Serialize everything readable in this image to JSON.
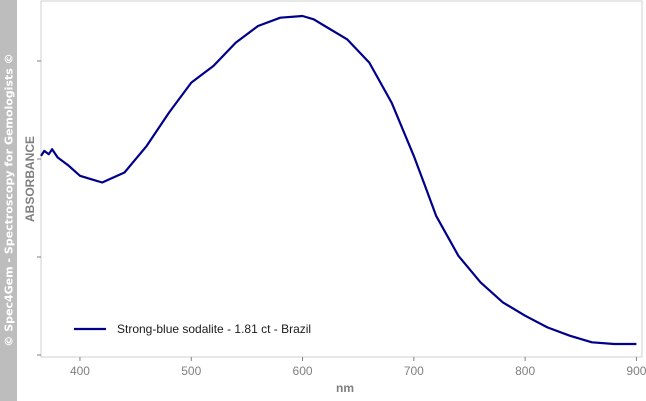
{
  "watermark": "© Spec4Gem - Spectroscopy for Gemologists ©",
  "colors": {
    "line": "#00008b",
    "frame": "#d0d0d0",
    "axis": "#808080",
    "sidebar": "#bdbdbd"
  },
  "chart_data": {
    "type": "line",
    "title": "",
    "xlabel": "nm",
    "ylabel": "ABSORBANCE",
    "xlim": [
      365,
      905
    ],
    "ylim": [
      0,
      1
    ],
    "x_ticks": [
      400,
      500,
      600,
      700,
      800,
      900
    ],
    "y_ticks_labeled": false,
    "grid": false,
    "legend": {
      "position": "bottom-left",
      "entries": [
        "Strong-blue sodalite - 1.81 ct - Brazil"
      ]
    },
    "series": [
      {
        "name": "Strong-blue sodalite - 1.81 ct - Brazil",
        "x": [
          365,
          368,
          372,
          375,
          380,
          390,
          400,
          410,
          420,
          430,
          440,
          450,
          460,
          480,
          500,
          520,
          540,
          560,
          580,
          600,
          610,
          620,
          640,
          660,
          680,
          700,
          710,
          720,
          740,
          760,
          780,
          800,
          820,
          840,
          860,
          880,
          900
        ],
        "y": [
          0.58,
          0.595,
          0.585,
          0.6,
          0.575,
          0.55,
          0.52,
          0.51,
          0.5,
          0.515,
          0.53,
          0.57,
          0.61,
          0.71,
          0.8,
          0.85,
          0.92,
          0.97,
          0.995,
          1.0,
          0.99,
          0.97,
          0.93,
          0.86,
          0.74,
          0.58,
          0.49,
          0.4,
          0.28,
          0.2,
          0.14,
          0.1,
          0.065,
          0.04,
          0.02,
          0.015,
          0.015
        ]
      }
    ]
  }
}
